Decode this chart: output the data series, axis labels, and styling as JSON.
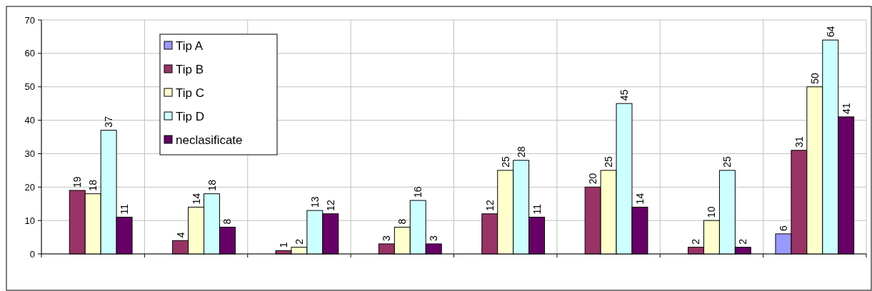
{
  "chart_data": {
    "type": "bar",
    "categories": [
      null,
      null,
      null,
      null,
      null,
      null,
      null,
      null
    ],
    "series": [
      {
        "name": "Tip A",
        "color": "#9999ff",
        "values": [
          null,
          null,
          null,
          null,
          null,
          null,
          null,
          6
        ]
      },
      {
        "name": "Tip B",
        "color": "#993366",
        "values": [
          19,
          4,
          1,
          3,
          12,
          20,
          2,
          31
        ]
      },
      {
        "name": "Tip C",
        "color": "#ffffcc",
        "values": [
          18,
          14,
          2,
          8,
          25,
          25,
          10,
          50
        ]
      },
      {
        "name": "Tip D",
        "color": "#ccffff",
        "values": [
          37,
          18,
          13,
          16,
          28,
          45,
          25,
          64
        ]
      },
      {
        "name": "neclasificate",
        "color": "#660066",
        "values": [
          11,
          8,
          12,
          3,
          11,
          14,
          2,
          41
        ]
      }
    ],
    "ylim": [
      0,
      70
    ],
    "yticks": [
      0,
      10,
      20,
      30,
      40,
      50,
      60,
      70
    ],
    "grid": true,
    "legend": "top left",
    "data_labels": true
  }
}
